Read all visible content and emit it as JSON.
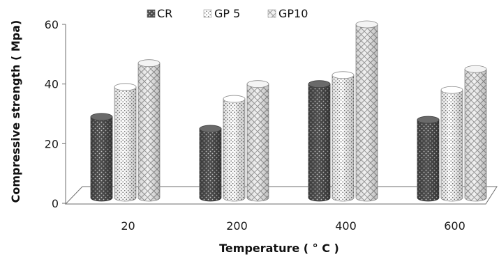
{
  "chart_data": {
    "type": "bar",
    "title": "",
    "xlabel": "Temperature ( ° C )",
    "ylabel": "Compressive strength ( Mpa)",
    "categories": [
      "20",
      "200",
      "400",
      "600"
    ],
    "series": [
      {
        "name": "CR",
        "values": [
          29,
          25,
          40,
          28
        ]
      },
      {
        "name": "GP 5",
        "values": [
          39,
          35,
          43,
          38
        ]
      },
      {
        "name": "GP10",
        "values": [
          47,
          40,
          60,
          45
        ]
      }
    ],
    "ylim": [
      0,
      60
    ],
    "yticks": [
      "0",
      "20",
      "40",
      "60"
    ],
    "grid": false,
    "legend_position": "top-center",
    "style": "3d-cylinder",
    "colors": {
      "CR": "#555555",
      "GP 5": "#ffffff",
      "GP10": "#e6e6e6",
      "outline": "#7a7a7a",
      "axis": "#666666"
    }
  }
}
